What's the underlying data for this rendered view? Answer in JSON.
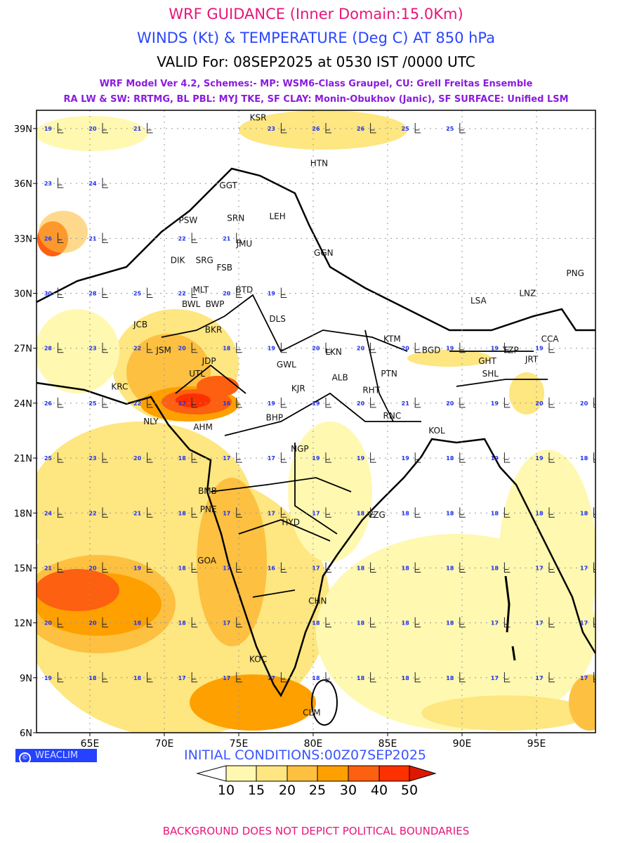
{
  "header": {
    "title": "WRF GUIDANCE (Inner Domain:15.0Km)",
    "subtitle": "WINDS (Kt) & TEMPERATURE (Deg C) AT 850 hPa",
    "valid": "VALID For: 08SEP2025 at 0530 IST /0000 UTC",
    "model_line1": "WRF Model Ver 4.2, Schemes:- MP: WSM6-Class Graupel, CU: Grell Freitas Ensemble",
    "model_line2": "RA LW & SW: RRTMG, BL PBL: MYJ TKE, SF CLAY: Monin-Obukhov (Janic), SF SURFACE: Unified LSM"
  },
  "map": {
    "lat_labels": [
      "39N",
      "36N",
      "33N",
      "30N",
      "27N",
      "24N",
      "21N",
      "18N",
      "15N",
      "12N",
      "9N",
      "6N"
    ],
    "lat_values": [
      39,
      36,
      33,
      30,
      27,
      24,
      21,
      18,
      15,
      12,
      9,
      6
    ],
    "lon_labels": [
      "65E",
      "70E",
      "75E",
      "80E",
      "85E",
      "90E",
      "95E"
    ],
    "lon_values": [
      65,
      70,
      75,
      80,
      85,
      90,
      95
    ],
    "cities": [
      {
        "name": "KSR",
        "lon": 76.3,
        "lat": 39.6
      },
      {
        "name": "HTN",
        "lon": 80.4,
        "lat": 37.1
      },
      {
        "name": "GGT",
        "lon": 74.3,
        "lat": 35.9
      },
      {
        "name": "PSW",
        "lon": 71.6,
        "lat": 34.0
      },
      {
        "name": "SRN",
        "lon": 74.8,
        "lat": 34.1
      },
      {
        "name": "LEH",
        "lon": 77.6,
        "lat": 34.2
      },
      {
        "name": "JMU",
        "lon": 74.9,
        "lat": 32.7
      },
      {
        "name": "SRG",
        "lon": 72.7,
        "lat": 31.8
      },
      {
        "name": "DIK",
        "lon": 70.9,
        "lat": 31.8
      },
      {
        "name": "FSB",
        "lon": 73.1,
        "lat": 31.4
      },
      {
        "name": "GGN",
        "lon": 80.7,
        "lat": 32.2
      },
      {
        "name": "MLT",
        "lon": 71.5,
        "lat": 30.2
      },
      {
        "name": "BWP",
        "lon": 73.4,
        "lat": 29.9
      },
      {
        "name": "BTD",
        "lon": 74.9,
        "lat": 30.2
      },
      {
        "name": "BWL",
        "lon": 71.8,
        "lat": 29.4
      },
      {
        "name": "JCB",
        "lon": 68.4,
        "lat": 28.3
      },
      {
        "name": "BKR",
        "lon": 73.3,
        "lat": 28.0
      },
      {
        "name": "DLS",
        "lon": 77.6,
        "lat": 28.6
      },
      {
        "name": "LSA",
        "lon": 91.1,
        "lat": 29.6
      },
      {
        "name": "LNZ",
        "lon": 94.4,
        "lat": 30.0
      },
      {
        "name": "PNG",
        "lon": 97.6,
        "lat": 31.1
      },
      {
        "name": "KTM",
        "lon": 85.3,
        "lat": 27.5
      },
      {
        "name": "BGD",
        "lon": 88.4,
        "lat": 26.9
      },
      {
        "name": "TZP",
        "lon": 92.8,
        "lat": 26.9
      },
      {
        "name": "JRT",
        "lon": 94.2,
        "lat": 26.9
      },
      {
        "name": "CCA",
        "lon": 95.9,
        "lat": 27.5
      },
      {
        "name": "GHT",
        "lon": 91.7,
        "lat": 26.3
      },
      {
        "name": "SHL",
        "lon": 91.9,
        "lat": 25.6
      },
      {
        "name": "JSM",
        "lon": 70.9,
        "lat": 26.9
      },
      {
        "name": "JDP",
        "lon": 73.0,
        "lat": 26.3
      },
      {
        "name": "UTL",
        "lon": 72.2,
        "lat": 25.6
      },
      {
        "name": "GWL",
        "lon": 78.2,
        "lat": 26.1
      },
      {
        "name": "LKN",
        "lon": 80.9,
        "lat": 26.8
      },
      {
        "name": "ALB",
        "lon": 81.8,
        "lat": 25.4
      },
      {
        "name": "KJR",
        "lon": 79.0,
        "lat": 24.8
      },
      {
        "name": "PTN",
        "lon": 85.1,
        "lat": 25.6
      },
      {
        "name": "RHT",
        "lon": 83.9,
        "lat": 24.7
      },
      {
        "name": "KRC",
        "lon": 67.0,
        "lat": 24.9
      },
      {
        "name": "BHP",
        "lon": 77.4,
        "lat": 23.2
      },
      {
        "name": "RNC",
        "lon": 85.3,
        "lat": 23.3
      },
      {
        "name": "KOL",
        "lon": 88.3,
        "lat": 22.5
      },
      {
        "name": "NLY",
        "lon": 69.1,
        "lat": 23.0
      },
      {
        "name": "AHM",
        "lon": 72.6,
        "lat": 22.7
      },
      {
        "name": "NGP",
        "lon": 79.1,
        "lat": 21.5
      },
      {
        "name": "BMB",
        "lon": 72.9,
        "lat": 19.2
      },
      {
        "name": "PNE",
        "lon": 73.9,
        "lat": 18.2
      },
      {
        "name": "HYD",
        "lon": 78.5,
        "lat": 17.5
      },
      {
        "name": "VZG",
        "lon": 83.3,
        "lat": 17.9
      },
      {
        "name": "GOA",
        "lon": 73.8,
        "lat": 15.4
      },
      {
        "name": "CHN",
        "lon": 80.3,
        "lat": 13.2
      },
      {
        "name": "KOC",
        "lon": 76.3,
        "lat": 10.0
      },
      {
        "name": "CLM",
        "lon": 79.9,
        "lat": 7.1
      }
    ],
    "temperature_grid": {
      "lons": [
        62,
        65,
        68,
        71,
        74,
        77,
        80,
        83,
        86,
        89,
        92,
        95,
        98
      ],
      "lats": [
        39,
        36,
        33,
        30,
        27,
        24,
        21,
        18,
        15,
        12,
        9
      ],
      "values": [
        [
          19,
          20,
          21,
          null,
          null,
          23,
          26,
          26,
          25,
          25,
          null,
          null,
          null
        ],
        [
          23,
          24,
          null,
          null,
          null,
          null,
          null,
          null,
          null,
          null,
          null,
          null,
          null
        ],
        [
          26,
          21,
          null,
          22,
          21,
          null,
          null,
          null,
          null,
          null,
          null,
          null,
          null
        ],
        [
          30,
          28,
          25,
          22,
          20,
          19,
          null,
          null,
          null,
          null,
          null,
          null,
          null
        ],
        [
          28,
          23,
          22,
          20,
          18,
          19,
          20,
          20,
          20,
          19,
          19,
          19,
          null
        ],
        [
          26,
          25,
          22,
          17,
          16,
          19,
          19,
          20,
          21,
          20,
          19,
          20,
          20
        ],
        [
          25,
          23,
          20,
          18,
          17,
          17,
          19,
          19,
          19,
          18,
          19,
          19,
          18
        ],
        [
          24,
          22,
          21,
          18,
          17,
          17,
          17,
          18,
          18,
          18,
          18,
          18,
          18
        ],
        [
          21,
          20,
          19,
          18,
          17,
          16,
          17,
          18,
          18,
          18,
          18,
          17,
          17
        ],
        [
          20,
          20,
          18,
          18,
          17,
          null,
          18,
          18,
          18,
          18,
          17,
          17,
          17
        ],
        [
          19,
          18,
          18,
          17,
          17,
          17,
          18,
          18,
          18,
          18,
          17,
          17,
          17
        ]
      ]
    }
  },
  "footer": {
    "copyright": "©",
    "brand": "WEACLIM",
    "initial_conditions": "INITIAL CONDITIONS:00Z07SEP2025",
    "disclaimer": "BACKGROUND DOES NOT DEPICT POLITICAL BOUNDARIES"
  },
  "colorbar": {
    "labels": [
      "10",
      "15",
      "20",
      "25",
      "30",
      "40",
      "50"
    ],
    "colors": [
      "#ffffff",
      "#fff8b0",
      "#fee680",
      "#fdc040",
      "#fea000",
      "#fc6010",
      "#fd3000",
      "#de1800"
    ]
  }
}
